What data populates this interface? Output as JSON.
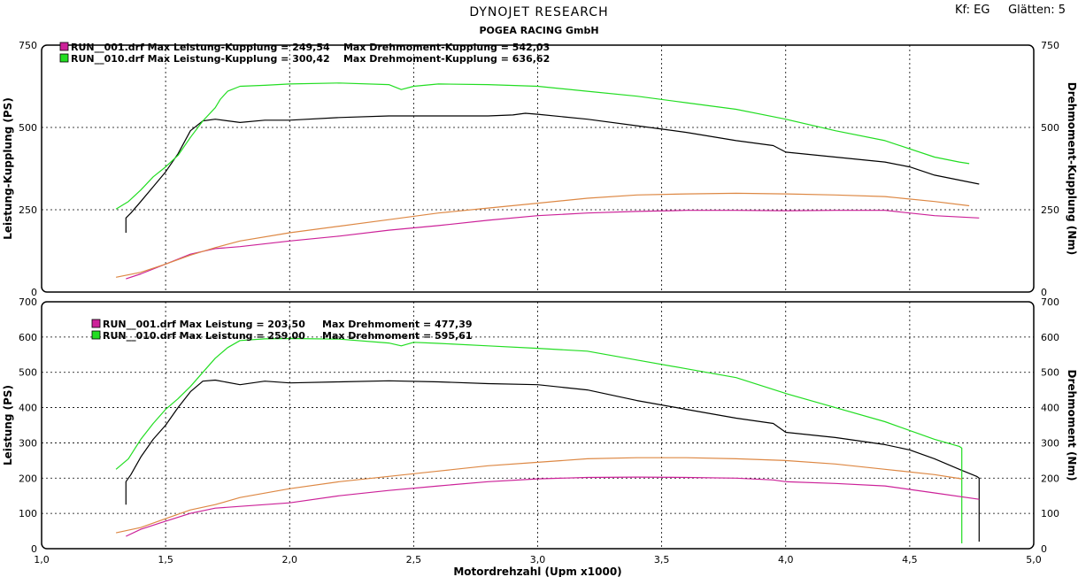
{
  "header": {
    "title": "DYNOJET  RESEARCH",
    "subtitle": "POGEA RACING GmbH",
    "kf_label": "Kf:",
    "kf_value": "EG",
    "glaetten_label": "Glätten:",
    "glaetten_value": "5"
  },
  "colors": {
    "run001_power": "#000000",
    "run010_power": "#22dd22",
    "run001_torque": "#cc2299",
    "run010_torque": "#dd8844"
  },
  "chart_data": [
    {
      "type": "line",
      "id": "top",
      "xlabel": "",
      "ylabel": "Leistung-Kupplung (PS)",
      "ylabel_right": "Drehmoment-Kupplung (Nm)",
      "xlim": [
        1.0,
        5.0
      ],
      "ylim": [
        0,
        750
      ],
      "yticks": [
        0,
        250,
        500,
        750
      ],
      "grid": true,
      "legend_position": "top-left",
      "legend": [
        "RUN__001.drf Max Leistung-Kupplung = 249,54    Max Drehmoment-Kupplung = 542,03",
        "RUN__010.drf Max Leistung-Kupplung = 300,42    Max Drehmoment-Kupplung = 636,62"
      ],
      "series": [
        {
          "key": "run001_power",
          "x": [
            1.34,
            1.34,
            1.36,
            1.4,
            1.45,
            1.5,
            1.55,
            1.6,
            1.65,
            1.7,
            1.8,
            1.9,
            2.0,
            2.2,
            2.4,
            2.6,
            2.8,
            2.9,
            2.95,
            3.0,
            3.2,
            3.4,
            3.6,
            3.8,
            3.95,
            4.0,
            4.2,
            4.4,
            4.5,
            4.6,
            4.7,
            4.78
          ],
          "y": [
            180,
            225,
            240,
            275,
            320,
            365,
            420,
            490,
            520,
            525,
            515,
            522,
            522,
            530,
            535,
            535,
            535,
            538,
            543,
            540,
            525,
            505,
            485,
            460,
            445,
            425,
            410,
            395,
            380,
            355,
            340,
            328
          ]
        },
        {
          "key": "run010_power",
          "x": [
            1.3,
            1.35,
            1.4,
            1.45,
            1.5,
            1.55,
            1.6,
            1.65,
            1.7,
            1.72,
            1.75,
            1.8,
            1.9,
            2.0,
            2.2,
            2.4,
            2.45,
            2.5,
            2.6,
            2.8,
            3.0,
            3.2,
            3.4,
            3.6,
            3.8,
            4.0,
            4.2,
            4.4,
            4.6,
            4.7,
            4.74
          ],
          "y": [
            252,
            275,
            310,
            350,
            380,
            415,
            470,
            520,
            560,
            585,
            610,
            625,
            628,
            632,
            635,
            630,
            615,
            625,
            632,
            630,
            625,
            610,
            595,
            575,
            555,
            525,
            490,
            460,
            410,
            395,
            390
          ]
        },
        {
          "key": "run001_torque",
          "x": [
            1.34,
            1.4,
            1.5,
            1.6,
            1.7,
            1.8,
            2.0,
            2.2,
            2.4,
            2.6,
            2.8,
            3.0,
            3.2,
            3.4,
            3.6,
            3.8,
            4.0,
            4.2,
            4.4,
            4.6,
            4.78
          ],
          "y": [
            40,
            55,
            85,
            115,
            132,
            138,
            155,
            170,
            188,
            202,
            218,
            232,
            240,
            245,
            248,
            248,
            247,
            248,
            248,
            232,
            225
          ]
        },
        {
          "key": "run010_torque",
          "x": [
            1.3,
            1.4,
            1.5,
            1.6,
            1.7,
            1.8,
            2.0,
            2.2,
            2.4,
            2.6,
            2.8,
            3.0,
            3.2,
            3.4,
            3.6,
            3.8,
            4.0,
            4.2,
            4.4,
            4.6,
            4.74
          ],
          "y": [
            45,
            60,
            85,
            112,
            135,
            155,
            180,
            200,
            220,
            240,
            255,
            270,
            285,
            295,
            298,
            300,
            298,
            295,
            290,
            275,
            262
          ]
        }
      ]
    },
    {
      "type": "line",
      "id": "bottom",
      "xlabel": "Motordrehzahl (Upm x1000)",
      "ylabel": "Leistung (PS)",
      "ylabel_right": "Drehmoment (Nm)",
      "xlim": [
        1.0,
        5.0
      ],
      "ylim": [
        0,
        700
      ],
      "xticks": [
        "1,0",
        "1,5",
        "2,0",
        "2,5",
        "3,0",
        "3,5",
        "4,0",
        "4,5",
        "5,0"
      ],
      "yticks": [
        0,
        100,
        200,
        300,
        400,
        500,
        600,
        700
      ],
      "grid": true,
      "legend_position": "top-left",
      "legend": [
        "RUN__001.drf Max Leistung = 203,50     Max Drehmoment = 477,39",
        "RUN__010.drf Max Leistung = 259,00     Max Drehmoment = 595,61"
      ],
      "series": [
        {
          "key": "run001_power",
          "x": [
            1.34,
            1.34,
            1.36,
            1.4,
            1.45,
            1.5,
            1.55,
            1.6,
            1.65,
            1.7,
            1.8,
            1.9,
            2.0,
            2.2,
            2.4,
            2.6,
            2.8,
            3.0,
            3.2,
            3.4,
            3.6,
            3.8,
            3.95,
            4.0,
            4.2,
            4.4,
            4.5,
            4.6,
            4.7,
            4.77,
            4.78,
            4.78
          ],
          "y": [
            125,
            190,
            210,
            260,
            310,
            350,
            400,
            445,
            475,
            478,
            465,
            475,
            470,
            473,
            476,
            473,
            468,
            465,
            450,
            420,
            395,
            370,
            355,
            330,
            315,
            295,
            280,
            255,
            225,
            205,
            200,
            20
          ]
        },
        {
          "key": "run010_power",
          "x": [
            1.3,
            1.35,
            1.4,
            1.45,
            1.5,
            1.55,
            1.6,
            1.65,
            1.7,
            1.75,
            1.8,
            1.9,
            2.0,
            2.2,
            2.4,
            2.45,
            2.5,
            2.6,
            2.8,
            3.0,
            3.2,
            3.4,
            3.6,
            3.8,
            4.0,
            4.2,
            4.4,
            4.6,
            4.7,
            4.71,
            4.71
          ],
          "y": [
            225,
            255,
            310,
            355,
            395,
            425,
            460,
            500,
            540,
            570,
            590,
            595,
            596,
            594,
            583,
            575,
            585,
            582,
            575,
            568,
            560,
            535,
            510,
            485,
            440,
            400,
            360,
            310,
            290,
            285,
            15
          ]
        },
        {
          "key": "run001_torque",
          "x": [
            1.34,
            1.4,
            1.5,
            1.6,
            1.7,
            1.8,
            2.0,
            2.2,
            2.4,
            2.6,
            2.8,
            3.0,
            3.2,
            3.4,
            3.6,
            3.8,
            3.95,
            4.0,
            4.2,
            4.4,
            4.6,
            4.78
          ],
          "y": [
            35,
            55,
            78,
            100,
            115,
            120,
            130,
            150,
            165,
            178,
            190,
            198,
            202,
            203,
            202,
            200,
            195,
            190,
            185,
            178,
            158,
            140
          ]
        },
        {
          "key": "run010_torque",
          "x": [
            1.3,
            1.4,
            1.5,
            1.6,
            1.7,
            1.8,
            2.0,
            2.2,
            2.4,
            2.6,
            2.8,
            3.0,
            3.2,
            3.4,
            3.6,
            3.8,
            4.0,
            4.2,
            4.4,
            4.6,
            4.71
          ],
          "y": [
            45,
            60,
            85,
            110,
            125,
            145,
            170,
            190,
            205,
            220,
            235,
            245,
            255,
            258,
            258,
            255,
            250,
            240,
            225,
            210,
            198
          ]
        }
      ]
    }
  ]
}
